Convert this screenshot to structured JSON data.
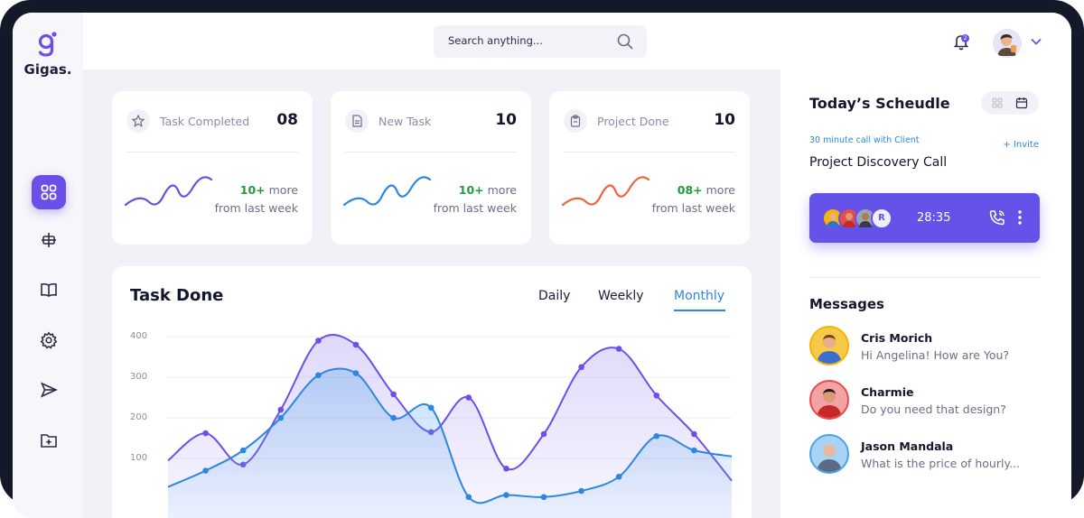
{
  "brand": {
    "name": "Gigas.",
    "accent": "#6c4fe8"
  },
  "sidebar": {
    "items": [
      {
        "name": "dashboard",
        "icon": "grid-icon",
        "active": true
      },
      {
        "name": "layers",
        "icon": "align-icon",
        "active": false
      },
      {
        "name": "library",
        "icon": "book-icon",
        "active": false
      },
      {
        "name": "settings",
        "icon": "gear-icon",
        "active": false
      },
      {
        "name": "send",
        "icon": "send-icon",
        "active": false
      },
      {
        "name": "folder",
        "icon": "folder-add-icon",
        "active": false
      }
    ]
  },
  "header": {
    "search_placeholder": "Search anything...",
    "notification_count": "2"
  },
  "stats": [
    {
      "label": "Task Completed",
      "value": "08",
      "delta": "10+",
      "delta_rest": " more",
      "sub": "from last week",
      "icon": "star-icon",
      "color": "#6c4fe8",
      "delta_color": "#1f9d3a"
    },
    {
      "label": "New Task",
      "value": "10",
      "delta": "10+",
      "delta_rest": " more",
      "sub": "from last week",
      "icon": "document-icon",
      "color": "#2e86de",
      "delta_color": "#1f9d3a"
    },
    {
      "label": "Project Done",
      "value": "10",
      "delta": "08+",
      "delta_rest": " more",
      "sub": "from last week",
      "icon": "clipboard-icon",
      "color": "#f0623a",
      "delta_color": "#1f9d3a"
    }
  ],
  "task_done": {
    "title": "Task Done",
    "tabs": [
      {
        "label": "Daily",
        "active": false
      },
      {
        "label": "Weekly",
        "active": false
      },
      {
        "label": "Monthly",
        "active": true
      }
    ]
  },
  "chart_data": {
    "type": "area",
    "ylim": [
      0,
      400
    ],
    "yticks": [
      100,
      200,
      300,
      400
    ],
    "x": [
      1,
      2,
      3,
      4,
      5,
      6,
      7,
      8,
      9,
      10,
      11,
      12,
      13,
      14,
      15,
      16
    ],
    "series": [
      {
        "color": "#6c4fe8",
        "values": [
          95,
          162,
          85,
          220,
          390,
          380,
          258,
          165,
          250,
          75,
          160,
          325,
          370,
          255,
          160,
          45
        ]
      },
      {
        "color": "#2e86de",
        "values": [
          30,
          70,
          120,
          200,
          305,
          310,
          200,
          225,
          5,
          10,
          5,
          20,
          55,
          155,
          120,
          105
        ]
      }
    ]
  },
  "schedule": {
    "title": "Today’s Scheudle",
    "call_sub": "30 minute call with Client",
    "invite": "+ Invite",
    "call_title": "Project Discovery Call",
    "avatar_initial": "R",
    "call_time": "28:35"
  },
  "messages": {
    "title": "Messages",
    "items": [
      {
        "name": "Cris Morich",
        "text": "Hi Angelina! How are You?",
        "ring": "#f5b400",
        "bg": "#f7c948"
      },
      {
        "name": "Charmie",
        "text": "Do you need that design?",
        "ring": "#e94b4b",
        "bg": "#f3a3a3"
      },
      {
        "name": "Jason Mandala",
        "text": "What is the price of hourly...",
        "ring": "#4aa3e8",
        "bg": "#a9d3f5"
      }
    ]
  }
}
